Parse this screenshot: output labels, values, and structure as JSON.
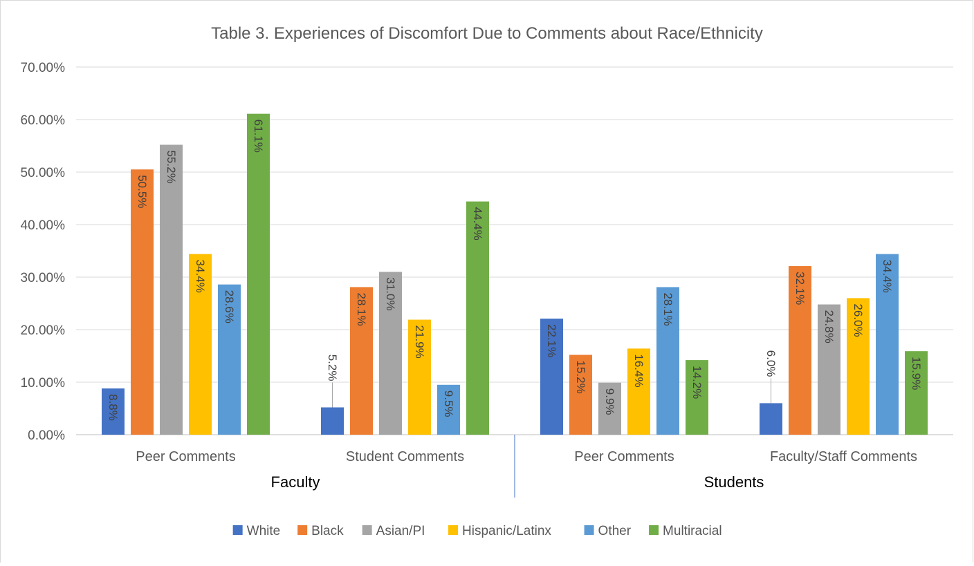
{
  "chart_data": {
    "type": "bar",
    "title": "Table 3. Experiences of Discomfort Due to Comments about Race/Ethnicity",
    "groups": [
      {
        "label": "Faculty",
        "categories": [
          "Peer Comments",
          "Student Comments"
        ]
      },
      {
        "label": "Students",
        "categories": [
          "Peer Comments",
          "Faculty/Staff Comments"
        ]
      }
    ],
    "categories": [
      "Peer Comments",
      "Student Comments",
      "Peer Comments",
      "Faculty/Staff Comments"
    ],
    "series": [
      {
        "name": "White",
        "color": "#4472C4",
        "values": [
          8.8,
          5.2,
          22.1,
          6.0
        ],
        "labels": [
          "8.8%",
          "5.2%",
          "22.1%",
          "6.0%"
        ]
      },
      {
        "name": "Black",
        "color": "#ED7D31",
        "values": [
          50.5,
          28.1,
          15.2,
          32.1
        ],
        "labels": [
          "50.5%",
          "28.1%",
          "15.2%",
          "32.1%"
        ]
      },
      {
        "name": "Asian/PI",
        "color": "#A5A5A5",
        "values": [
          55.2,
          31.0,
          9.9,
          24.8
        ],
        "labels": [
          "55.2%",
          "31.0%",
          "9.9%",
          "24.8%"
        ]
      },
      {
        "name": "Hispanic/Latinx",
        "color": "#FFC000",
        "values": [
          34.4,
          21.9,
          16.4,
          26.0
        ],
        "labels": [
          "34.4%",
          "21.9%",
          "16.4%",
          "26.0%"
        ]
      },
      {
        "name": "Other",
        "color": "#5B9BD5",
        "values": [
          28.6,
          9.5,
          28.1,
          34.4
        ],
        "labels": [
          "28.6%",
          "9.5%",
          "28.1%",
          "34.4%"
        ]
      },
      {
        "name": "Multiracial",
        "color": "#70AD47",
        "values": [
          61.1,
          44.4,
          14.2,
          15.9
        ],
        "labels": [
          "61.1%",
          "44.4%",
          "14.2%",
          "15.9%"
        ]
      }
    ],
    "yticks": [
      "0.00%",
      "10.00%",
      "20.00%",
      "30.00%",
      "40.00%",
      "50.00%",
      "60.00%",
      "70.00%"
    ],
    "ylim": [
      0,
      70
    ],
    "grid": true,
    "legend": "bottom"
  }
}
